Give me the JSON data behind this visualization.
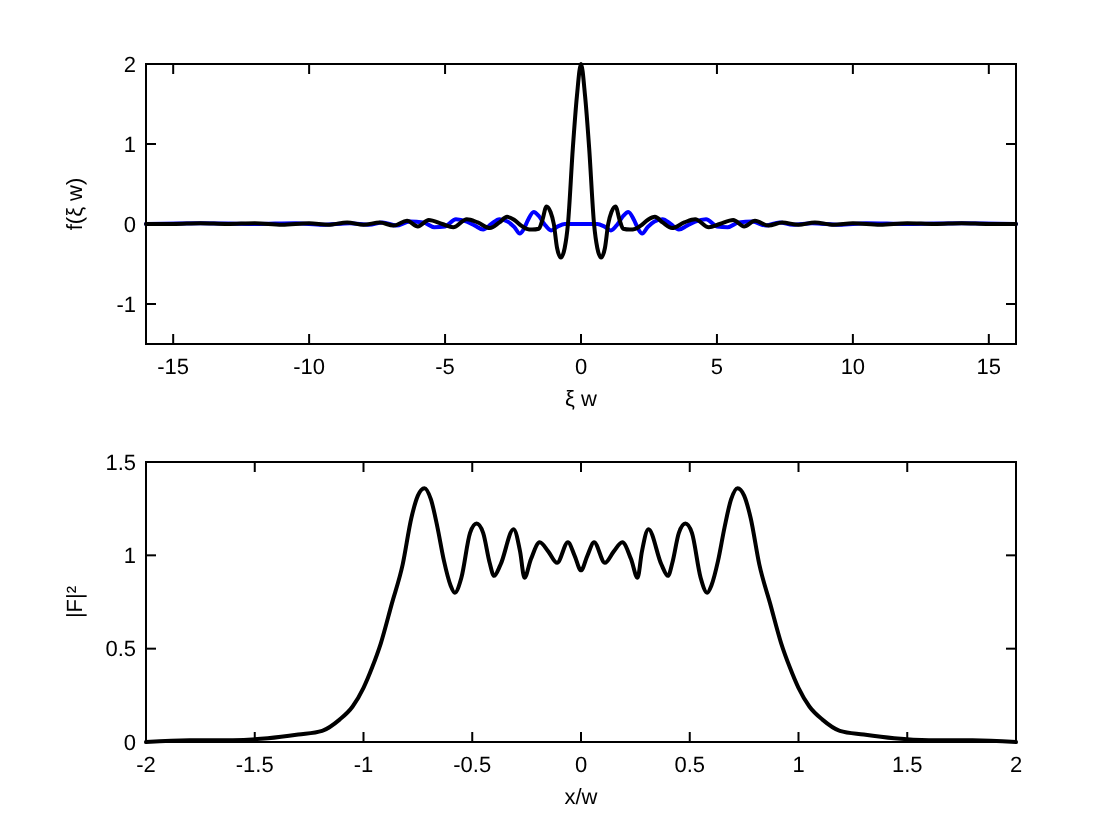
{
  "chart_data": [
    {
      "type": "line",
      "xlabel": "ξ w",
      "ylabel": "f(ξ w)",
      "xlim": [
        -16,
        16
      ],
      "xticks": [
        -15,
        -10,
        -5,
        0,
        5,
        10,
        15
      ],
      "ylim": [
        -1.5,
        2
      ],
      "yticks": [
        -1,
        0,
        1,
        2
      ],
      "series": [
        {
          "color": "#0000ff",
          "x": [
            -16,
            -14,
            -12,
            -10.5,
            -9.5,
            -8.5,
            -7.8,
            -7.3,
            -6.8,
            -6.3,
            -5.8,
            -5.4,
            -5.0,
            -4.6,
            -4.2,
            -3.9,
            -3.6,
            -3.3,
            -3.0,
            -2.7,
            -2.45,
            -2.25,
            -2.1,
            -1.95,
            -1.74,
            -1.55,
            -1.35,
            -1.1,
            -0.85,
            -0.6,
            0,
            0.6,
            0.85,
            1.1,
            1.35,
            1.55,
            1.74,
            1.95,
            2.1,
            2.25,
            2.45,
            2.7,
            3.0,
            3.3,
            3.6,
            3.9,
            4.2,
            4.6,
            5.0,
            5.4,
            5.8,
            6.3,
            6.8,
            7.3,
            7.8,
            8.5,
            9.5,
            10.5,
            12,
            14,
            16
          ],
          "values": [
            0,
            0.01,
            0,
            0.01,
            -0.01,
            0.01,
            -0.01,
            0.02,
            -0.02,
            0.03,
            0.02,
            -0.04,
            -0.03,
            0.06,
            0.03,
            -0.02,
            -0.07,
            0,
            0.06,
            0.03,
            -0.04,
            -0.12,
            -0.06,
            0.05,
            0.15,
            0.1,
            0,
            -0.08,
            -0.03,
            0,
            0,
            0,
            -0.03,
            -0.08,
            0,
            0.1,
            0.15,
            0.05,
            -0.06,
            -0.12,
            -0.04,
            0.03,
            0.06,
            0,
            -0.07,
            -0.02,
            0.03,
            0.06,
            -0.03,
            -0.04,
            0.02,
            0.03,
            -0.02,
            0.02,
            -0.01,
            0.01,
            -0.01,
            0.01,
            0,
            0.01,
            0
          ]
        },
        {
          "color": "#000000",
          "x": [
            -16,
            -15,
            -14,
            -13,
            -12,
            -11,
            -10,
            -9.3,
            -8.6,
            -8.0,
            -7.4,
            -6.9,
            -6.4,
            -6.0,
            -5.6,
            -5.1,
            -4.7,
            -4.2,
            -3.8,
            -3.35,
            -3.0,
            -2.72,
            -2.45,
            -2.2,
            -2.0,
            -1.8,
            -1.55,
            -1.42,
            -1.27,
            -1.12,
            -1.0,
            -0.88,
            -0.74,
            -0.6,
            -0.48,
            -0.3,
            -0.15,
            0,
            0.15,
            0.3,
            0.48,
            0.6,
            0.74,
            0.88,
            1.0,
            1.12,
            1.27,
            1.42,
            1.55,
            1.8,
            2.0,
            2.2,
            2.45,
            2.72,
            3.0,
            3.35,
            3.8,
            4.2,
            4.7,
            5.1,
            5.6,
            6.0,
            6.4,
            6.9,
            7.4,
            8.0,
            8.6,
            9.3,
            10,
            11,
            12,
            13,
            14,
            15,
            16
          ],
          "values": [
            0,
            0,
            0.01,
            0,
            0.01,
            -0.01,
            0.01,
            -0.01,
            0.02,
            -0.01,
            0.02,
            -0.02,
            0.04,
            -0.03,
            0.05,
            0,
            -0.04,
            0.06,
            0.02,
            -0.05,
            0.02,
            0.09,
            0.05,
            -0.02,
            -0.06,
            -0.07,
            -0.06,
            0.05,
            0.22,
            0.15,
            0,
            -0.3,
            -0.42,
            -0.3,
            0,
            0.95,
            1.6,
            2.0,
            1.6,
            0.95,
            0,
            -0.3,
            -0.42,
            -0.3,
            0,
            0.15,
            0.22,
            0.05,
            -0.06,
            -0.07,
            -0.06,
            -0.02,
            0.05,
            0.09,
            0.02,
            -0.05,
            0.02,
            0.06,
            -0.04,
            0,
            0.05,
            -0.03,
            0.04,
            -0.02,
            0.02,
            -0.01,
            0.02,
            -0.01,
            0.01,
            -0.01,
            0.01,
            0,
            0.01,
            0,
            0
          ]
        }
      ]
    },
    {
      "type": "line",
      "xlabel": "x/w",
      "ylabel": "|F|²",
      "xlim": [
        -2,
        2
      ],
      "xticks": [
        -2,
        -1.5,
        -1,
        -0.5,
        0,
        0.5,
        1,
        1.5,
        2
      ],
      "ylim": [
        0,
        1.5
      ],
      "yticks": [
        0,
        0.5,
        1,
        1.5
      ],
      "x": [
        -2,
        -1.8,
        -1.6,
        -1.44,
        -1.3,
        -1.19,
        -1.11,
        -1.05,
        -1.0,
        -0.96,
        -0.92,
        -0.87,
        -0.82,
        -0.78,
        -0.75,
        -0.72,
        -0.69,
        -0.66,
        -0.63,
        -0.6,
        -0.58,
        -0.55,
        -0.51,
        -0.48,
        -0.45,
        -0.42,
        -0.4,
        -0.37,
        -0.31,
        -0.28,
        -0.26,
        -0.23,
        -0.19,
        -0.15,
        -0.11,
        -0.06,
        -0.03,
        0,
        0.03,
        0.06,
        0.11,
        0.15,
        0.19,
        0.23,
        0.26,
        0.28,
        0.31,
        0.37,
        0.4,
        0.42,
        0.45,
        0.48,
        0.51,
        0.55,
        0.58,
        0.6,
        0.63,
        0.66,
        0.69,
        0.72,
        0.75,
        0.78,
        0.82,
        0.87,
        0.92,
        0.96,
        1.0,
        1.05,
        1.11,
        1.19,
        1.3,
        1.44,
        1.6,
        1.8,
        2
      ],
      "series": [
        {
          "color": "#000000",
          "values": [
            0,
            0.01,
            0.01,
            0.02,
            0.04,
            0.06,
            0.12,
            0.19,
            0.29,
            0.4,
            0.53,
            0.74,
            0.95,
            1.2,
            1.32,
            1.36,
            1.3,
            1.15,
            0.97,
            0.84,
            0.8,
            0.88,
            1.12,
            1.17,
            1.12,
            0.96,
            0.89,
            0.95,
            1.14,
            1.02,
            0.88,
            0.98,
            1.07,
            1.02,
            0.96,
            1.07,
            1.0,
            0.92,
            1.0,
            1.07,
            0.96,
            1.02,
            1.07,
            0.98,
            0.88,
            1.02,
            1.14,
            0.95,
            0.89,
            0.96,
            1.12,
            1.17,
            1.12,
            0.88,
            0.8,
            0.84,
            0.97,
            1.15,
            1.3,
            1.36,
            1.32,
            1.2,
            0.95,
            0.74,
            0.53,
            0.4,
            0.29,
            0.19,
            0.12,
            0.06,
            0.04,
            0.02,
            0.01,
            0.01,
            0
          ]
        }
      ]
    }
  ]
}
